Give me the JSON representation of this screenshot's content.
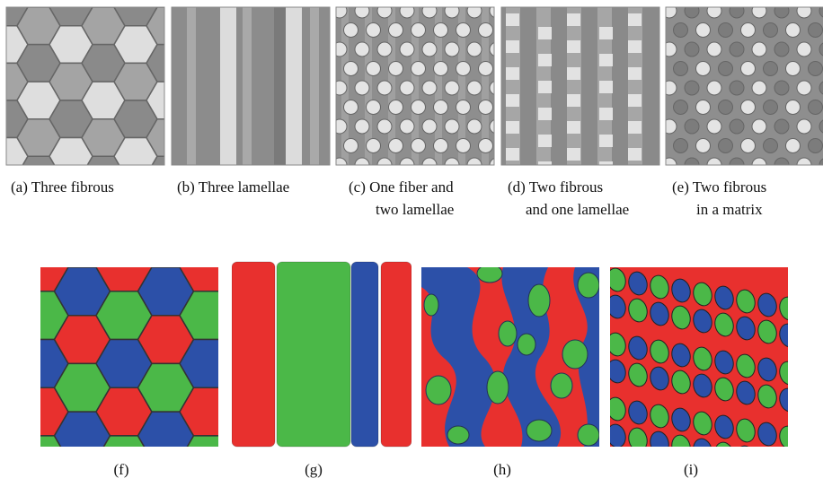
{
  "figure": {
    "panels": [
      {
        "caption": [
          "(a) Three fibrous"
        ]
      },
      {
        "caption": [
          "(b) Three lamellae"
        ]
      },
      {
        "caption": [
          "(c) One fiber and",
          "two lamellae"
        ]
      },
      {
        "caption": [
          "(d) Two fibrous",
          "and one lamellae"
        ]
      },
      {
        "caption": [
          "(e) Two fibrous",
          "in a matrix"
        ]
      },
      {
        "caption": [
          "(f)"
        ]
      },
      {
        "caption": [
          "(g)"
        ]
      },
      {
        "caption": [
          "(h)"
        ]
      },
      {
        "caption": [
          "(i)"
        ]
      }
    ]
  }
}
